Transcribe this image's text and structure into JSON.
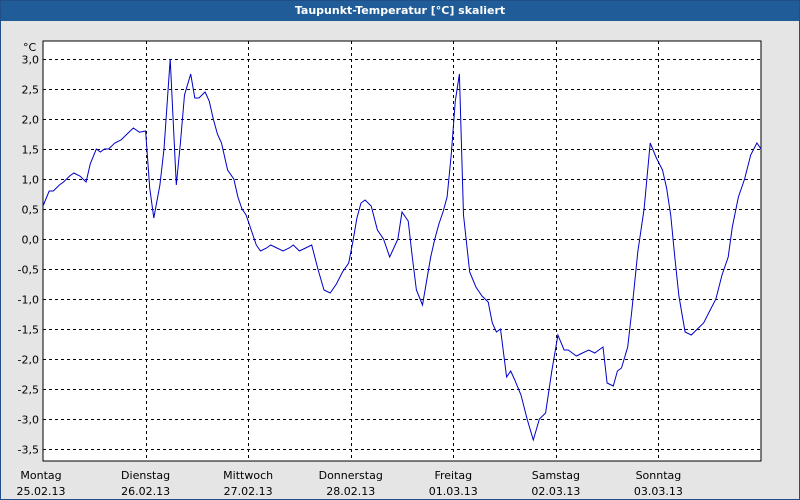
{
  "window": {
    "title": "Taupunkt-Temperatur [°C] skaliert"
  },
  "colors": {
    "line": "#0000c8",
    "plot_background": "#ffffff",
    "titlebar": "#1f5c98",
    "grid": "#000000"
  },
  "chart_data": {
    "type": "line",
    "title": "Taupunkt-Temperatur [°C] skaliert",
    "unit_label": "°C",
    "ylim": [
      -3.7,
      3.3
    ],
    "yticks": [
      "3,0",
      "2,5",
      "2,0",
      "1,5",
      "1,0",
      "0,5",
      "0,0",
      "-0,5",
      "-1,0",
      "-1,5",
      "-2,0",
      "-2,5",
      "-3,0",
      "-3,5"
    ],
    "ytick_values": [
      3.0,
      2.5,
      2.0,
      1.5,
      1.0,
      0.5,
      0.0,
      -0.5,
      -1.0,
      -1.5,
      -2.0,
      -2.5,
      -3.0,
      -3.5
    ],
    "xlim": [
      0,
      7
    ],
    "x_unit": "days from 25.02.13 00:00",
    "day_labels": [
      {
        "day": "Montag",
        "date": "25.02.13"
      },
      {
        "day": "Dienstag",
        "date": "26.02.13"
      },
      {
        "day": "Mittwoch",
        "date": "27.02.13"
      },
      {
        "day": "Donnerstag",
        "date": "28.02.13"
      },
      {
        "day": "Freitag",
        "date": "01.03.13"
      },
      {
        "day": "Samstag",
        "date": "02.03.13"
      },
      {
        "day": "Sonntag",
        "date": "03.03.13"
      }
    ],
    "grid": true,
    "series": [
      {
        "x": [
          0.0,
          0.06,
          0.1,
          0.16,
          0.2,
          0.26,
          0.3,
          0.36,
          0.42,
          0.46,
          0.52,
          0.56,
          0.6,
          0.64,
          0.7,
          0.76,
          0.82,
          0.88,
          0.94,
          1.0,
          1.04,
          1.08,
          1.14,
          1.18,
          1.24,
          1.3,
          1.34,
          1.38,
          1.44,
          1.48,
          1.52,
          1.58,
          1.62,
          1.66,
          1.7,
          1.74,
          1.8,
          1.86,
          1.9,
          1.94,
          1.98,
          2.02,
          2.08,
          2.12,
          2.18,
          2.22,
          2.28,
          2.34,
          2.4,
          2.44,
          2.5,
          2.56,
          2.62,
          2.68,
          2.74,
          2.8,
          2.86,
          2.92,
          2.98,
          3.02,
          3.06,
          3.1,
          3.14,
          3.2,
          3.26,
          3.32,
          3.38,
          3.42,
          3.46,
          3.5,
          3.56,
          3.6,
          3.64,
          3.7,
          3.74,
          3.78,
          3.82,
          3.86,
          3.9,
          3.94,
          3.98,
          4.02,
          4.06,
          4.1,
          4.16,
          4.22,
          4.28,
          4.34,
          4.38,
          4.42,
          4.46,
          4.52,
          4.56,
          4.6,
          4.66,
          4.72,
          4.78,
          4.84,
          4.9,
          4.96,
          5.02,
          5.08,
          5.12,
          5.16,
          5.2,
          5.26,
          5.32,
          5.38,
          5.42,
          5.46,
          5.5,
          5.56,
          5.6,
          5.64,
          5.7,
          5.74,
          5.8,
          5.86,
          5.92,
          5.98,
          6.04,
          6.08,
          6.12,
          6.16,
          6.2,
          6.26,
          6.32,
          6.38,
          6.44,
          6.5,
          6.56,
          6.62,
          6.68,
          6.72,
          6.78,
          6.84,
          6.9,
          6.96,
          7.0
        ],
        "y": [
          0.55,
          0.8,
          0.8,
          0.9,
          0.95,
          1.05,
          1.1,
          1.05,
          0.95,
          1.25,
          1.5,
          1.45,
          1.5,
          1.5,
          1.6,
          1.65,
          1.75,
          1.85,
          1.78,
          1.8,
          0.85,
          0.35,
          0.9,
          1.5,
          3.0,
          0.9,
          1.6,
          2.4,
          2.75,
          2.35,
          2.35,
          2.45,
          2.3,
          2.0,
          1.75,
          1.6,
          1.15,
          1.0,
          0.7,
          0.5,
          0.4,
          0.2,
          -0.1,
          -0.2,
          -0.15,
          -0.1,
          -0.15,
          -0.2,
          -0.15,
          -0.1,
          -0.2,
          -0.15,
          -0.1,
          -0.5,
          -0.85,
          -0.9,
          -0.75,
          -0.55,
          -0.4,
          -0.05,
          0.35,
          0.6,
          0.65,
          0.55,
          0.15,
          0.0,
          -0.3,
          -0.15,
          0.0,
          0.45,
          0.3,
          -0.3,
          -0.85,
          -1.1,
          -0.7,
          -0.3,
          0.0,
          0.25,
          0.45,
          0.7,
          1.4,
          2.3,
          2.75,
          0.4,
          -0.55,
          -0.8,
          -0.95,
          -1.05,
          -1.4,
          -1.55,
          -1.5,
          -2.3,
          -2.2,
          -2.35,
          -2.6,
          -3.0,
          -3.35,
          -3.0,
          -2.9,
          -2.2,
          -1.6,
          -1.85,
          -1.85,
          -1.9,
          -1.95,
          -1.9,
          -1.85,
          -1.9,
          -1.85,
          -1.8,
          -2.4,
          -2.45,
          -2.2,
          -2.15,
          -1.8,
          -1.2,
          -0.2,
          0.5,
          1.6,
          1.35,
          1.15,
          0.85,
          0.4,
          -0.3,
          -0.95,
          -1.55,
          -1.6,
          -1.5,
          -1.4,
          -1.2,
          -1.0,
          -0.6,
          -0.3,
          0.2,
          0.7,
          1.0,
          1.4,
          1.6,
          1.5
        ]
      }
    ]
  }
}
